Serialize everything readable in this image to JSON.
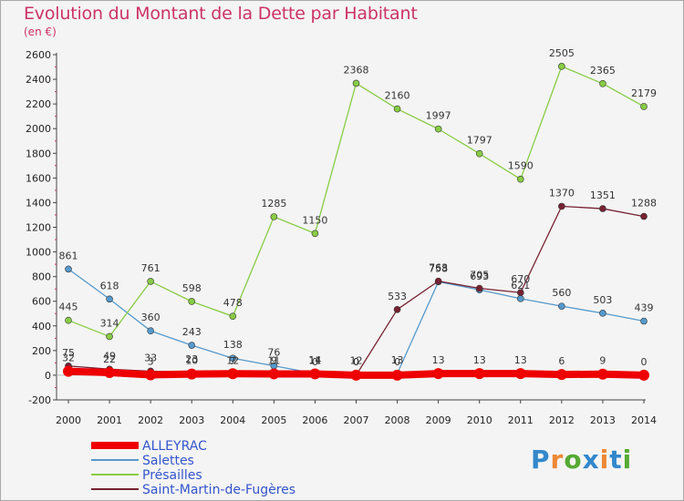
{
  "chart_data": {
    "type": "line",
    "title": "Evolution du Montant de la Dette par Habitant",
    "subtitle": "(en €)",
    "x": [
      "2000",
      "2001",
      "2002",
      "2003",
      "2004",
      "2005",
      "2006",
      "2007",
      "2008",
      "2009",
      "2010",
      "2011",
      "2012",
      "2013",
      "2014"
    ],
    "ylim": [
      -200,
      2600
    ],
    "yticks": [
      -200,
      0,
      200,
      400,
      600,
      800,
      1000,
      1200,
      1400,
      1600,
      1800,
      2000,
      2200,
      2400,
      2600
    ],
    "grid": false,
    "legend_position": "bottom-left",
    "series": [
      {
        "name": "ALLEYRAC",
        "color": "#ee0000",
        "values": [
          32,
          22,
          3,
          10,
          12,
          11,
          11,
          0,
          0,
          13,
          13,
          13,
          6,
          9,
          0
        ]
      },
      {
        "name": "Salettes",
        "color": "#5599cc",
        "values": [
          861,
          618,
          360,
          243,
          138,
          76,
          14,
          12,
          13,
          758,
          693,
          621,
          560,
          503,
          439
        ]
      },
      {
        "name": "Présailles",
        "color": "#88cc44",
        "values": [
          445,
          314,
          761,
          598,
          478,
          1285,
          1150,
          2368,
          2160,
          1997,
          1797,
          1590,
          2505,
          2365,
          2179
        ]
      },
      {
        "name": "Saint-Martin-de-Fugères",
        "color": "#772233",
        "values": [
          75,
          49,
          33,
          23,
          7,
          9,
          0,
          0,
          533,
          763,
          705,
          670,
          1370,
          1351,
          1288
        ]
      }
    ]
  },
  "logo": {
    "text": "Proxiti"
  }
}
